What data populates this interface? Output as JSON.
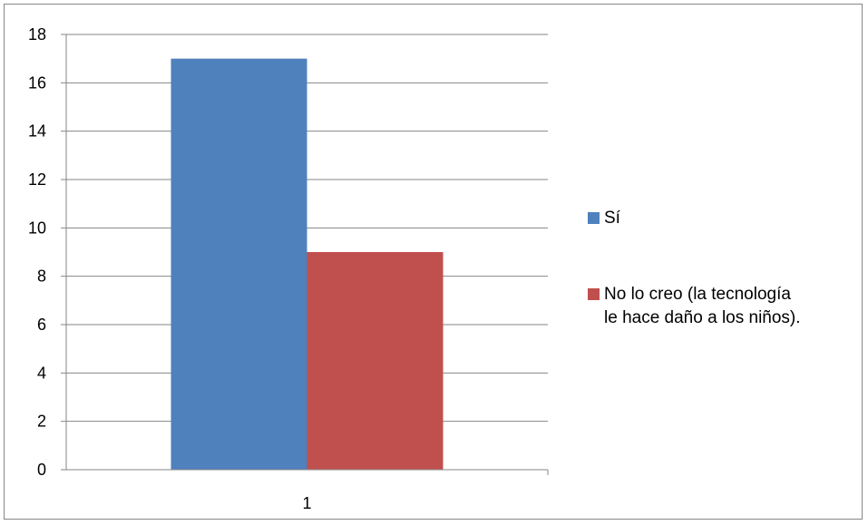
{
  "chart_data": {
    "type": "bar",
    "categories": [
      "1"
    ],
    "series": [
      {
        "name": "Sí",
        "values": [
          17
        ],
        "color": "#4F81BD"
      },
      {
        "name": "No lo creo (la tecnología\nle hace daño a los niños).",
        "values": [
          9
        ],
        "color": "#C0504D"
      }
    ],
    "ylim": [
      0,
      18
    ],
    "yticks": [
      "0",
      "2",
      "4",
      "6",
      "8",
      "10",
      "12",
      "14",
      "16",
      "18"
    ],
    "grid": true,
    "legend_position": "right"
  }
}
